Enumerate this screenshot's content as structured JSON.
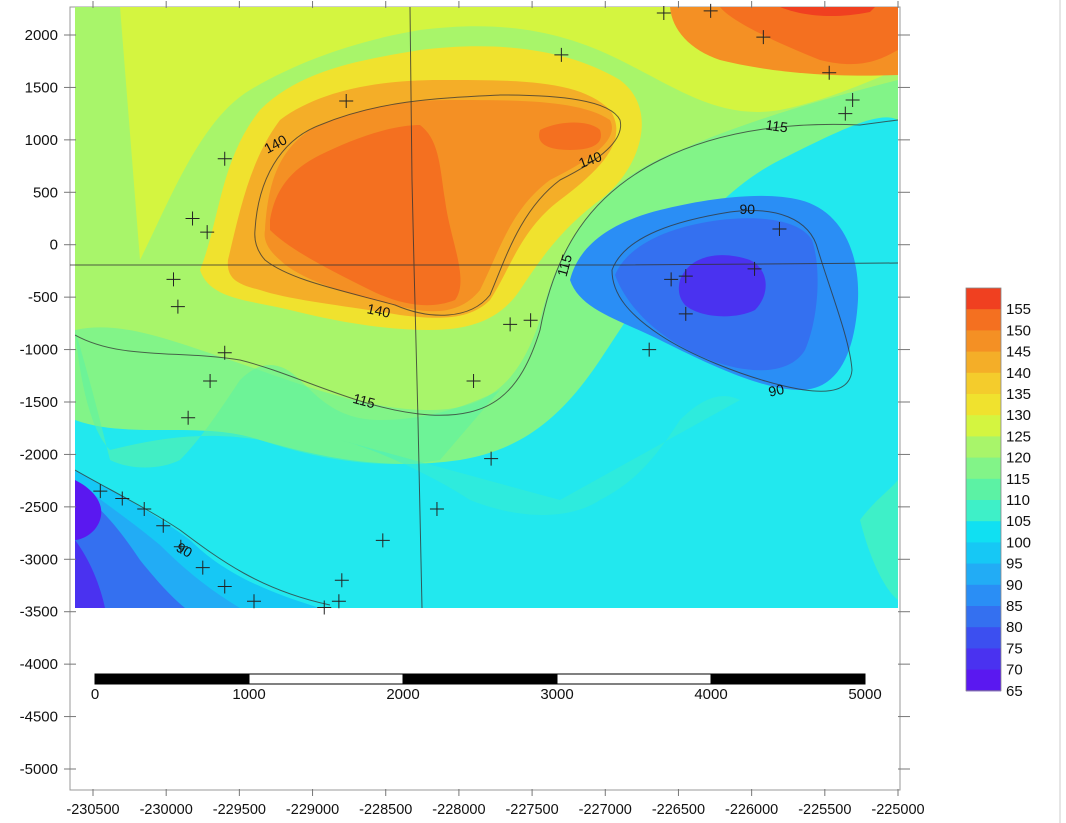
{
  "chart_data": {
    "type": "filled-contour-map",
    "x_axis": {
      "ticks": [
        -230500,
        -230000,
        -229500,
        -229000,
        -228500,
        -228000,
        -227500,
        -227000,
        -226500,
        -226000,
        -225500,
        -225000
      ],
      "range": [
        -230550,
        -225000
      ]
    },
    "y_axis": {
      "ticks": [
        2000,
        1500,
        1000,
        500,
        0,
        -500,
        -1000,
        -1500,
        -2000,
        -2500,
        -3000,
        -3500,
        -4000,
        -4500,
        -5000
      ],
      "range": [
        -5200,
        2250
      ]
    },
    "grid": false,
    "levels": [
      65,
      70,
      75,
      80,
      85,
      90,
      95,
      100,
      105,
      110,
      115,
      120,
      125,
      130,
      135,
      140,
      145,
      150,
      155
    ],
    "level_colors": [
      "#5a18f0",
      "#4a32f0",
      "#3c4ff0",
      "#3470f0",
      "#2a8ef5",
      "#22acf5",
      "#16c8f5",
      "#10e0f2",
      "#3ef0c8",
      "#5cf2a4",
      "#82f488",
      "#a8f56a",
      "#d4f540",
      "#f0e22e",
      "#f4cc2c",
      "#f4ae28",
      "#f49024",
      "#f47020",
      "#f04020"
    ],
    "contour_labels": [
      {
        "text": "140",
        "x": -229250,
        "y": 950
      },
      {
        "text": "140",
        "x": -227100,
        "y": 800
      },
      {
        "text": "140",
        "x": -228550,
        "y": -640
      },
      {
        "text": "115",
        "x": -225830,
        "y": 1120
      },
      {
        "text": "115",
        "x": -227270,
        "y": -200
      },
      {
        "text": "115",
        "x": -228650,
        "y": -1500
      },
      {
        "text": "90",
        "x": -226030,
        "y": 330
      },
      {
        "text": "90",
        "x": -225830,
        "y": -1400
      },
      {
        "text": "90",
        "x": -229880,
        "y": -2920
      }
    ],
    "sample_points": [
      [
        -230450,
        -2350
      ],
      [
        -230300,
        -2420
      ],
      [
        -230150,
        -2520
      ],
      [
        -230020,
        -2680
      ],
      [
        -229900,
        -2880
      ],
      [
        -229750,
        -3080
      ],
      [
        -229600,
        -3260
      ],
      [
        -229400,
        -3400
      ],
      [
        -228920,
        -3460
      ],
      [
        -228820,
        -3400
      ],
      [
        -228800,
        -3200
      ],
      [
        -228520,
        -2820
      ],
      [
        -228150,
        -2520
      ],
      [
        -227780,
        -2040
      ],
      [
        -227900,
        -1300
      ],
      [
        -227650,
        -760
      ],
      [
        -227510,
        -720
      ],
      [
        -226700,
        -1000
      ],
      [
        -226550,
        -330
      ],
      [
        -226450,
        -300
      ],
      [
        -226450,
        -660
      ],
      [
        -225980,
        -230
      ],
      [
        -225810,
        150
      ],
      [
        -225360,
        1250
      ],
      [
        -225310,
        1380
      ],
      [
        -225470,
        1640
      ],
      [
        -225920,
        1980
      ],
      [
        -226280,
        2230
      ],
      [
        -226600,
        2210
      ],
      [
        -227300,
        1810
      ],
      [
        -228770,
        1370
      ],
      [
        -229600,
        820
      ],
      [
        -229820,
        250
      ],
      [
        -229720,
        120
      ],
      [
        -229950,
        -330
      ],
      [
        -229920,
        -590
      ],
      [
        -229600,
        -1030
      ],
      [
        -229700,
        -1300
      ],
      [
        -229850,
        -1650
      ]
    ],
    "scale_bar": {
      "labels": [
        "0",
        "1000",
        "2000",
        "3000",
        "4000",
        "5000"
      ]
    }
  }
}
